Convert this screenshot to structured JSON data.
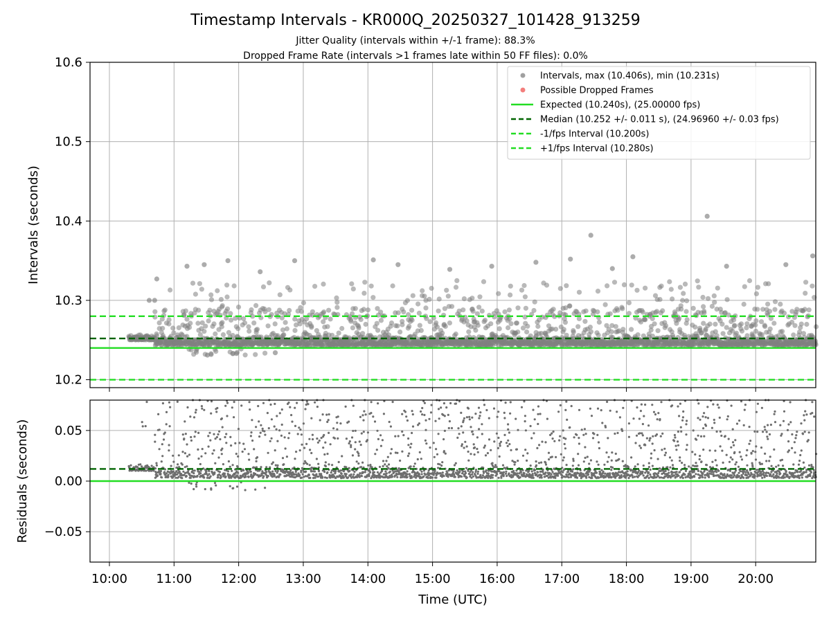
{
  "chart_data": [
    {
      "type": "scatter",
      "title": "Timestamp Intervals - KR000Q_20250327_101428_913259",
      "subtitle_lines": [
        "Jitter Quality (intervals within +/-1 frame): 88.3%",
        "Dropped Frame Rate (intervals >1 frames late within 50 FF files): 0.0%"
      ],
      "xlabel": "",
      "ylabel": "Intervals (seconds)",
      "xlim_hours": [
        9.7,
        20.93
      ],
      "ylim": [
        10.19,
        10.6
      ],
      "yticks": [
        10.2,
        10.3,
        10.4,
        10.5,
        10.6
      ],
      "ytick_labels": [
        "10.2",
        "10.3",
        "10.4",
        "10.5",
        "10.6"
      ],
      "grid": true,
      "legend_position": "top-right",
      "legend": [
        {
          "kind": "dot",
          "color": "#808080",
          "label": "Intervals, max (10.406s), min (10.231s)"
        },
        {
          "kind": "dot",
          "color": "#ef5350",
          "label": "Possible Dropped Frames"
        },
        {
          "kind": "solid",
          "color": "#22dd22",
          "label": "Expected (10.240s), (25.00000 fps)"
        },
        {
          "kind": "dashed",
          "color": "#006400",
          "label": "Median (10.252 +/- 0.011 s), (24.96960 +/- 0.03 fps)"
        },
        {
          "kind": "dashed",
          "color": "#22dd22",
          "label": "-1/fps Interval (10.200s)"
        },
        {
          "kind": "dashed",
          "color": "#22dd22",
          "label": "+1/fps Interval (10.280s)"
        }
      ],
      "reference_lines": [
        {
          "name": "expected",
          "value": 10.24,
          "style": "solid",
          "color": "#22dd22"
        },
        {
          "name": "median",
          "value": 10.252,
          "style": "dashed",
          "color": "#006400"
        },
        {
          "name": "minus_one_fps",
          "value": 10.2,
          "style": "dashed",
          "color": "#22dd22"
        },
        {
          "name": "plus_one_fps",
          "value": 10.28,
          "style": "dashed",
          "color": "#22dd22"
        }
      ],
      "series_summary": {
        "x_start": "10:18",
        "x_end": "20:56",
        "typical_value": 10.25,
        "max": 10.406,
        "min": 10.231
      },
      "highlight_points": [
        {
          "x": "19:15",
          "y": 10.406
        },
        {
          "x": "17:27",
          "y": 10.382
        },
        {
          "x": "20:53",
          "y": 10.356
        },
        {
          "x": "18:06",
          "y": 10.355
        },
        {
          "x": "14:05",
          "y": 10.351
        },
        {
          "x": "11:50",
          "y": 10.35
        },
        {
          "x": "12:52",
          "y": 10.35
        },
        {
          "x": "17:08",
          "y": 10.352
        },
        {
          "x": "16:36",
          "y": 10.348
        },
        {
          "x": "11:28",
          "y": 10.345
        },
        {
          "x": "14:28",
          "y": 10.345
        },
        {
          "x": "20:28",
          "y": 10.345
        },
        {
          "x": "11:12",
          "y": 10.343
        },
        {
          "x": "15:55",
          "y": 10.343
        },
        {
          "x": "19:33",
          "y": 10.343
        },
        {
          "x": "17:47",
          "y": 10.34
        },
        {
          "x": "15:16",
          "y": 10.339
        },
        {
          "x": "12:20",
          "y": 10.336
        },
        {
          "x": "10:44",
          "y": 10.327
        },
        {
          "x": "10:37",
          "y": 10.3
        },
        {
          "x": "10:42",
          "y": 10.3
        },
        {
          "x": "12:34",
          "y": 10.234
        },
        {
          "x": "11:31",
          "y": 10.231
        },
        {
          "x": "11:58",
          "y": 10.233
        }
      ]
    },
    {
      "type": "scatter",
      "ylabel": "Residuals (seconds)",
      "xlabel": "Time (UTC)",
      "xlim_hours": [
        9.7,
        20.93
      ],
      "ylim": [
        -0.08,
        0.08
      ],
      "yticks": [
        -0.05,
        0.0,
        0.05
      ],
      "ytick_labels": [
        "−0.05",
        "0.00",
        "0.05"
      ],
      "xticks": [
        "10:00",
        "11:00",
        "12:00",
        "13:00",
        "14:00",
        "15:00",
        "16:00",
        "17:00",
        "18:00",
        "19:00",
        "20:00"
      ],
      "grid": true,
      "reference_lines": [
        {
          "name": "zero",
          "value": 0.0,
          "style": "solid",
          "color": "#22dd22"
        },
        {
          "name": "median",
          "value": 0.012,
          "style": "dashed",
          "color": "#006400"
        }
      ],
      "series_summary": {
        "x_start": "10:18",
        "x_end": "20:56",
        "typical_value": 0.01,
        "clipped_above": 0.08,
        "min": -0.009
      }
    }
  ],
  "colors": {
    "points_top": "#808080",
    "points_bottom": "#6e6e6e",
    "grid": "#b0b0b0",
    "expected": "#22dd22",
    "median": "#006400"
  }
}
